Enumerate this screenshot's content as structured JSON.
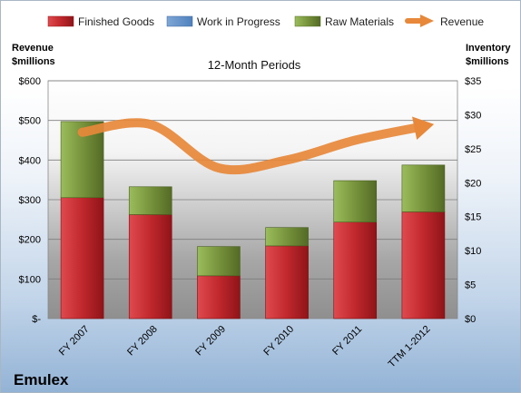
{
  "chart_data": {
    "type": "bar",
    "title": "12-Month Periods",
    "company": "Emulex",
    "y_left_label": [
      "Revenue",
      "$millions"
    ],
    "y_right_label": [
      "Inventory",
      "$millions"
    ],
    "categories": [
      "FY 2007",
      "FY 2008",
      "FY 2009",
      "FY 2010",
      "FY 2011",
      "TTM 1-2012"
    ],
    "y_left_ticks": [
      "$-",
      "$100",
      "$200",
      "$300",
      "$400",
      "$500",
      "$600"
    ],
    "y_right_ticks": [
      "$0",
      "$5",
      "$10",
      "$15",
      "$20",
      "$25",
      "$30",
      "$35"
    ],
    "ylim_left": [
      0,
      600
    ],
    "ylim_right": [
      0,
      35
    ],
    "grid": true,
    "legend_position": "top",
    "stacked": true,
    "series": [
      {
        "name": "Finished Goods",
        "axis": "right",
        "color": "#c0282d",
        "values": [
          17.8,
          15.3,
          6.3,
          10.7,
          14.2,
          15.7
        ]
      },
      {
        "name": "Work in Progress",
        "axis": "right",
        "color": "#4f81bd",
        "values": [
          0,
          0,
          0,
          0,
          0,
          0
        ]
      },
      {
        "name": "Raw Materials",
        "axis": "right",
        "color": "#77933c",
        "values": [
          11.2,
          4.1,
          4.3,
          2.7,
          6.1,
          6.9
        ]
      },
      {
        "name": "Revenue",
        "axis": "left",
        "type": "line",
        "color": "#e7883a",
        "values": [
          470,
          490,
          380,
          400,
          450,
          485
        ]
      }
    ]
  }
}
